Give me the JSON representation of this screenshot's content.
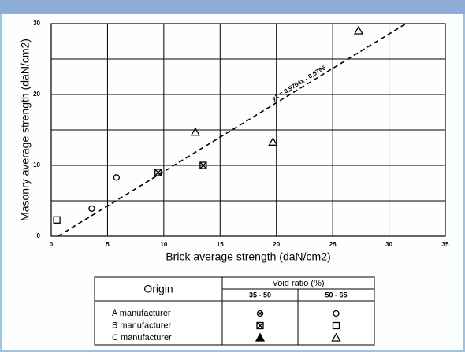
{
  "chart_data": {
    "type": "scatter",
    "xlabel": "Brick average strength (daN/cm2)",
    "ylabel": "Masonry average strength (daN/cm2)",
    "xlim": [
      0,
      35
    ],
    "ylim": [
      0,
      30
    ],
    "xticks": [
      0,
      5,
      10,
      15,
      20,
      25,
      30,
      35
    ],
    "yticks": [
      0,
      10,
      20,
      30
    ],
    "yminor": [
      5,
      15,
      25
    ],
    "grid": true,
    "series": [
      {
        "marker": "circle",
        "color": "#000000",
        "x": [
          3.6,
          5.8
        ],
        "y": [
          3.9,
          8.3
        ]
      },
      {
        "marker": "square",
        "color": "#000000",
        "x": [
          0.5
        ],
        "y": [
          2.3
        ]
      },
      {
        "marker": "square-x",
        "color": "#000000",
        "x": [
          9.5,
          13.5
        ],
        "y": [
          9.0,
          10.0
        ]
      },
      {
        "marker": "triangle",
        "color": "#000000",
        "x": [
          12.8,
          19.7,
          27.3
        ],
        "y": [
          14.7,
          13.3,
          29.0
        ]
      }
    ],
    "trendline": {
      "label": "y1 = 0,9704x - 0,5796",
      "slope": 0.9704,
      "intercept": -0.5796
    },
    "legend_table": {
      "header": "Origin",
      "group": "Void ratio (%)",
      "columns": [
        "35 - 50",
        "50 - 65"
      ],
      "rows": [
        "A manufacturer",
        "B manufacturer",
        "C manufacturer"
      ],
      "symbols": [
        [
          "circle-x",
          "circle"
        ],
        [
          "square-x",
          "square"
        ],
        [
          "triangle-filled",
          "triangle"
        ]
      ]
    }
  }
}
